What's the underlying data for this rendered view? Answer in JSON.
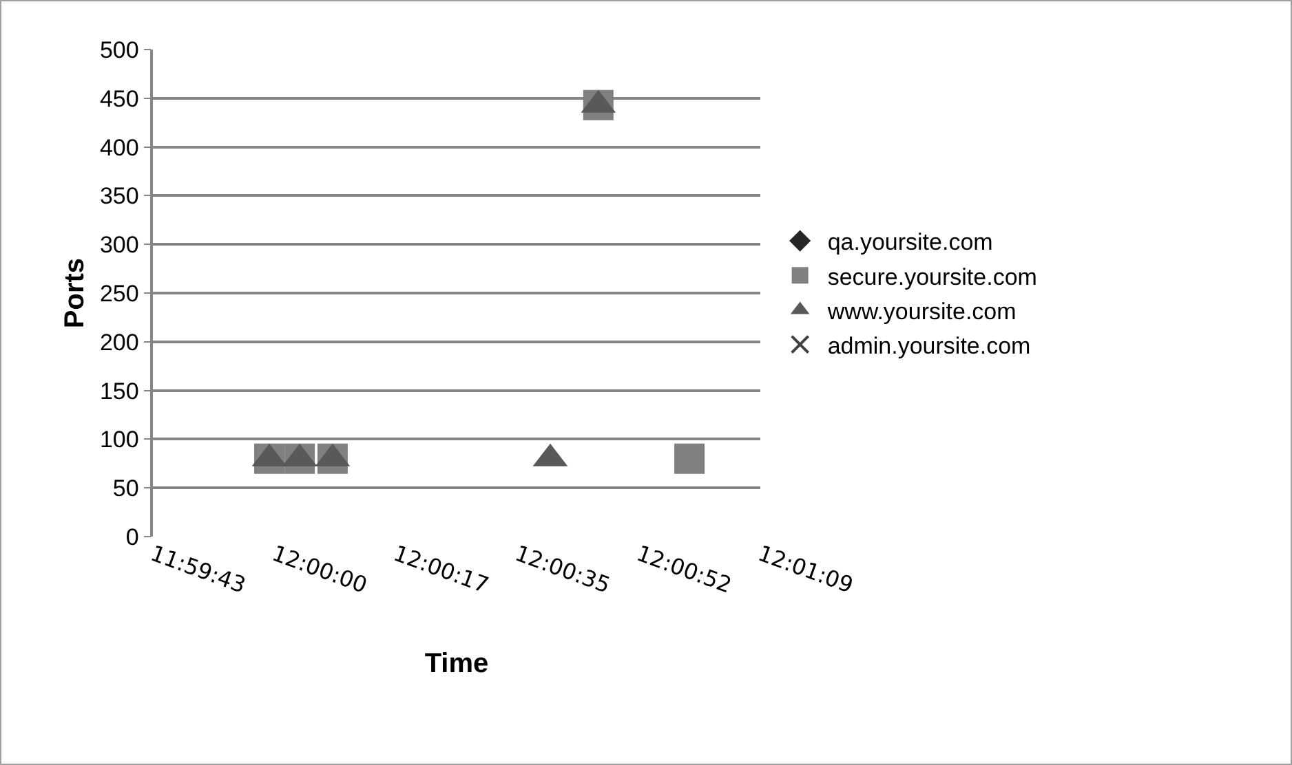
{
  "chart_data": {
    "type": "scatter",
    "xlabel": "Time",
    "ylabel": "Ports",
    "xlim": [
      11.9952,
      12.0192
    ],
    "xticks": [
      {
        "value": 11.9952,
        "label": "11:59:43"
      },
      {
        "value": 12,
        "label": "12:00:00"
      },
      {
        "value": 12.0048,
        "label": "12:00:17"
      },
      {
        "value": 12.0096,
        "label": "12:00:35"
      },
      {
        "value": 12.0144,
        "label": "12:00:52"
      },
      {
        "value": 12.0192,
        "label": "12:01:09"
      }
    ],
    "ylim": [
      0,
      500
    ],
    "yticks": [
      0,
      50,
      100,
      150,
      200,
      250,
      300,
      350,
      400,
      450,
      500
    ],
    "grid": "y",
    "legend": "right",
    "series": [
      {
        "name": "qa.yoursite.com",
        "color": "#262626",
        "marker": "diamond",
        "values": [
          null
        ]
      },
      {
        "name": "secure.yoursite.com",
        "color": "#808080",
        "marker": "square",
        "x": [
          11.9998,
          12.001,
          12.0023,
          12.0128,
          12.0164
        ],
        "values": [
          80,
          80,
          80,
          443,
          80
        ]
      },
      {
        "name": "www.yoursite.com",
        "color": "#595959",
        "marker": "triangle",
        "x": [
          11.9998,
          12.001,
          12.0023,
          12.0109,
          12.0128
        ],
        "values": [
          80,
          80,
          80,
          80,
          443
        ]
      },
      {
        "name": "admin.yoursite.com",
        "color": "#404040",
        "marker": "cross",
        "values": [
          null
        ]
      }
    ]
  }
}
